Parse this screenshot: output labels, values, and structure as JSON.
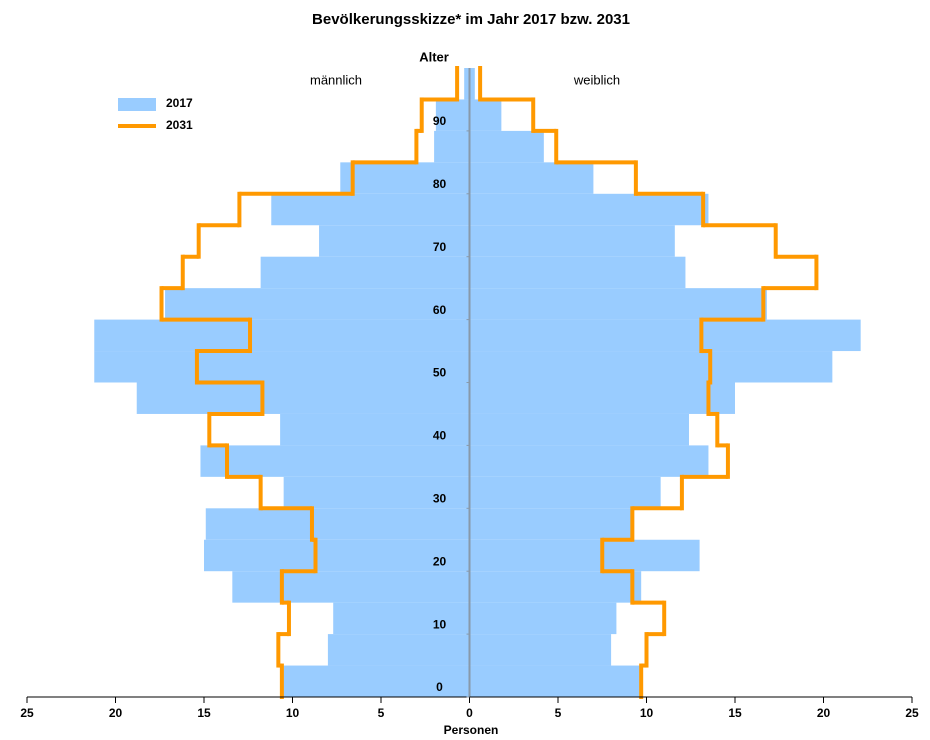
{
  "chart_data": {
    "type": "population-pyramid",
    "title": "Bevölkerungsskizze* im Jahr 2017 bzw. 2031",
    "y_label": "Alter",
    "x_label": "Personen",
    "left_label": "männlich",
    "right_label": "weiblich",
    "bins": [
      0,
      5,
      10,
      15,
      20,
      25,
      30,
      35,
      40,
      45,
      50,
      55,
      60,
      65,
      70,
      75,
      80,
      85,
      90,
      95,
      100
    ],
    "series": [
      {
        "name": "2017",
        "color": "#99ccff",
        "style": "bars",
        "male": [
          10.5,
          8.0,
          7.7,
          13.4,
          15.0,
          14.9,
          10.5,
          15.2,
          10.7,
          18.8,
          21.2,
          21.2,
          17.2,
          11.8,
          8.5,
          11.2,
          7.3,
          2.0,
          1.9,
          0.3
        ],
        "female": [
          9.7,
          8.0,
          8.3,
          9.7,
          13.0,
          9.3,
          10.8,
          13.5,
          12.4,
          15.0,
          20.5,
          22.1,
          16.8,
          12.2,
          11.6,
          13.5,
          7.0,
          4.2,
          1.8,
          0.3
        ]
      },
      {
        "name": "2031",
        "color": "#ff9900",
        "style": "step",
        "male": [
          10.6,
          10.8,
          10.2,
          10.6,
          8.7,
          8.9,
          11.8,
          13.7,
          14.7,
          11.7,
          15.4,
          12.4,
          17.4,
          16.2,
          15.3,
          13.0,
          6.6,
          3.0,
          2.7,
          0.7
        ],
        "female": [
          9.7,
          10.0,
          11.0,
          9.2,
          7.5,
          9.2,
          12.0,
          14.6,
          14.0,
          13.5,
          13.6,
          13.1,
          16.6,
          19.6,
          17.3,
          13.2,
          9.4,
          4.9,
          3.6,
          0.6
        ]
      }
    ],
    "xlim": [
      -25,
      25
    ],
    "xticks": [
      {
        "value": -25,
        "label": "25"
      },
      {
        "value": -20,
        "label": "20"
      },
      {
        "value": -15,
        "label": "15"
      },
      {
        "value": -10,
        "label": "10"
      },
      {
        "value": -5,
        "label": "5"
      },
      0,
      5,
      10,
      15,
      20,
      25
    ],
    "ylim": [
      0,
      100
    ],
    "yticks": [
      0,
      10,
      20,
      30,
      40,
      50,
      60,
      70,
      80,
      90
    ],
    "center_line_color": "#8899aa"
  }
}
